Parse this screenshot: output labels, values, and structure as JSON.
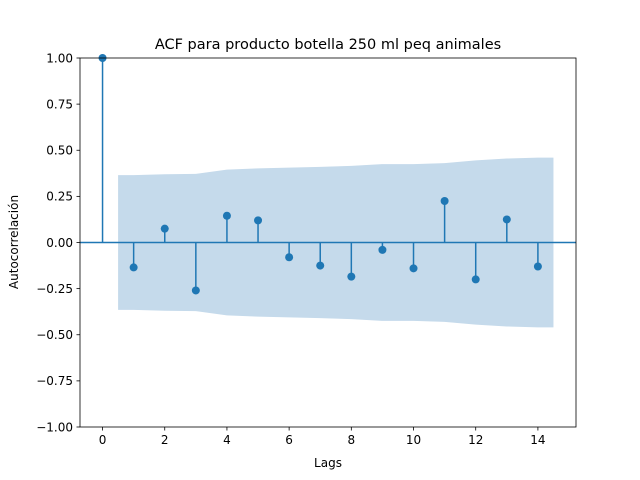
{
  "chart_data": {
    "type": "scatter",
    "subtype": "acf-stem",
    "title": "ACF para producto botella 250 ml peq animales",
    "xlabel": "Lags",
    "ylabel": "Autocorrelación",
    "xlim": [
      -0.725,
      15.225
    ],
    "ylim": [
      -1.0,
      1.0
    ],
    "xticks": [
      0,
      2,
      4,
      6,
      8,
      10,
      12,
      14
    ],
    "xtick_labels": [
      "0",
      "2",
      "4",
      "6",
      "8",
      "10",
      "12",
      "14"
    ],
    "yticks": [
      -1.0,
      -0.75,
      -0.5,
      -0.25,
      0.0,
      0.25,
      0.5,
      0.75,
      1.0
    ],
    "ytick_labels": [
      "−1.00",
      "−0.75",
      "−0.50",
      "−0.25",
      "0.00",
      "0.25",
      "0.50",
      "0.75",
      "1.00"
    ],
    "grid": false,
    "legend": "none",
    "zero_line": 0.0,
    "series": [
      {
        "lags": [
          0,
          1,
          2,
          3,
          4,
          5,
          6,
          7,
          8,
          9,
          10,
          11,
          12,
          13,
          14
        ],
        "values": [
          1.0,
          -0.135,
          0.075,
          -0.26,
          0.145,
          0.12,
          -0.08,
          -0.125,
          -0.185,
          -0.04,
          -0.14,
          0.225,
          -0.2,
          0.125,
          -0.13
        ],
        "color": "#1f77b4"
      }
    ],
    "confidence_band": {
      "x": [
        0.5,
        1,
        2,
        3,
        4,
        5,
        6,
        7,
        8,
        9,
        10,
        11,
        12,
        13,
        14,
        14.5
      ],
      "upper": [
        0.365,
        0.365,
        0.37,
        0.372,
        0.395,
        0.402,
        0.406,
        0.41,
        0.415,
        0.425,
        0.425,
        0.43,
        0.445,
        0.455,
        0.46,
        0.46
      ],
      "lower": [
        -0.365,
        -0.365,
        -0.37,
        -0.372,
        -0.395,
        -0.402,
        -0.406,
        -0.41,
        -0.415,
        -0.425,
        -0.425,
        -0.43,
        -0.445,
        -0.455,
        -0.46,
        -0.46
      ],
      "color": "#c5daeb"
    }
  }
}
